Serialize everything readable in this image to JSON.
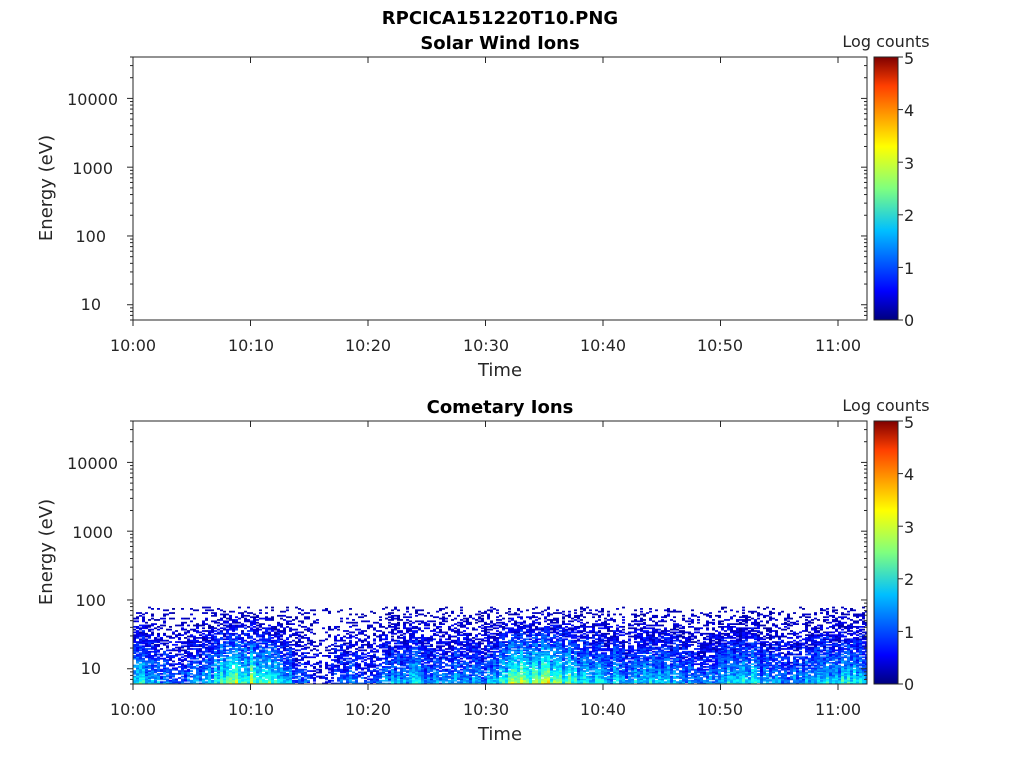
{
  "figure_title": "RPCICA151220T10.PNG",
  "chart_data": [
    {
      "type": "heatmap",
      "title": "Solar Wind Ions",
      "xlabel": "Time",
      "ylabel": "Energy (eV)",
      "x_tick_labels": [
        "10:00",
        "10:10",
        "10:20",
        "10:30",
        "10:40",
        "10:50",
        "11:00"
      ],
      "x_range": [
        "10:00",
        "11:02"
      ],
      "y_scale": "log",
      "y_tick_labels": [
        "10",
        "100",
        "1000",
        "10000"
      ],
      "y_range": [
        6,
        40000
      ],
      "colorbar": {
        "label": "Log counts",
        "range": [
          0,
          5
        ],
        "tick_labels": [
          "0",
          "1",
          "2",
          "3",
          "4",
          "5"
        ],
        "colormap": "jet"
      },
      "data_summary": "no counts recorded"
    },
    {
      "type": "heatmap",
      "title": "Cometary Ions",
      "xlabel": "Time",
      "ylabel": "Energy (eV)",
      "x_tick_labels": [
        "10:00",
        "10:10",
        "10:20",
        "10:30",
        "10:40",
        "10:50",
        "11:00"
      ],
      "x_range": [
        "10:00",
        "11:02"
      ],
      "y_scale": "log",
      "y_tick_labels": [
        "10",
        "100",
        "1000",
        "10000"
      ],
      "y_range": [
        6,
        40000
      ],
      "colorbar": {
        "label": "Log counts",
        "range": [
          0,
          5
        ],
        "tick_labels": [
          "0",
          "1",
          "2",
          "3",
          "4",
          "5"
        ],
        "colormap": "jet"
      },
      "data_summary": "counts confined to energies below about 80 eV; peak log counts about 3 near 6-20 eV; intensity bursts around 10:08-10:12, 10:31-10:37, 10:43-10:46, 10:50-10:53, 10:57-11:01",
      "energy_max_eV": 80,
      "activity_profile": [
        {
          "time": "10:00",
          "level": 2.6
        },
        {
          "time": "10:02",
          "level": 1.4
        },
        {
          "time": "10:04",
          "level": 1.0
        },
        {
          "time": "10:06",
          "level": 1.6
        },
        {
          "time": "10:08",
          "level": 2.9
        },
        {
          "time": "10:10",
          "level": 2.8
        },
        {
          "time": "10:12",
          "level": 2.2
        },
        {
          "time": "10:14",
          "level": 1.2
        },
        {
          "time": "10:16",
          "level": 0.6
        },
        {
          "time": "10:18",
          "level": 1.4
        },
        {
          "time": "10:20",
          "level": 0.9
        },
        {
          "time": "10:22",
          "level": 1.6
        },
        {
          "time": "10:24",
          "level": 1.9
        },
        {
          "time": "10:26",
          "level": 1.3
        },
        {
          "time": "10:28",
          "level": 1.7
        },
        {
          "time": "10:30",
          "level": 1.5
        },
        {
          "time": "10:32",
          "level": 2.6
        },
        {
          "time": "10:34",
          "level": 3.0
        },
        {
          "time": "10:36",
          "level": 2.7
        },
        {
          "time": "10:38",
          "level": 2.2
        },
        {
          "time": "10:40",
          "level": 1.9
        },
        {
          "time": "10:42",
          "level": 1.5
        },
        {
          "time": "10:44",
          "level": 2.1
        },
        {
          "time": "10:46",
          "level": 1.6
        },
        {
          "time": "10:48",
          "level": 1.3
        },
        {
          "time": "10:50",
          "level": 1.8
        },
        {
          "time": "10:52",
          "level": 2.0
        },
        {
          "time": "10:54",
          "level": 1.5
        },
        {
          "time": "10:56",
          "level": 1.4
        },
        {
          "time": "10:58",
          "level": 1.9
        },
        {
          "time": "11:00",
          "level": 2.1
        },
        {
          "time": "11:02",
          "level": 1.8
        }
      ]
    }
  ]
}
